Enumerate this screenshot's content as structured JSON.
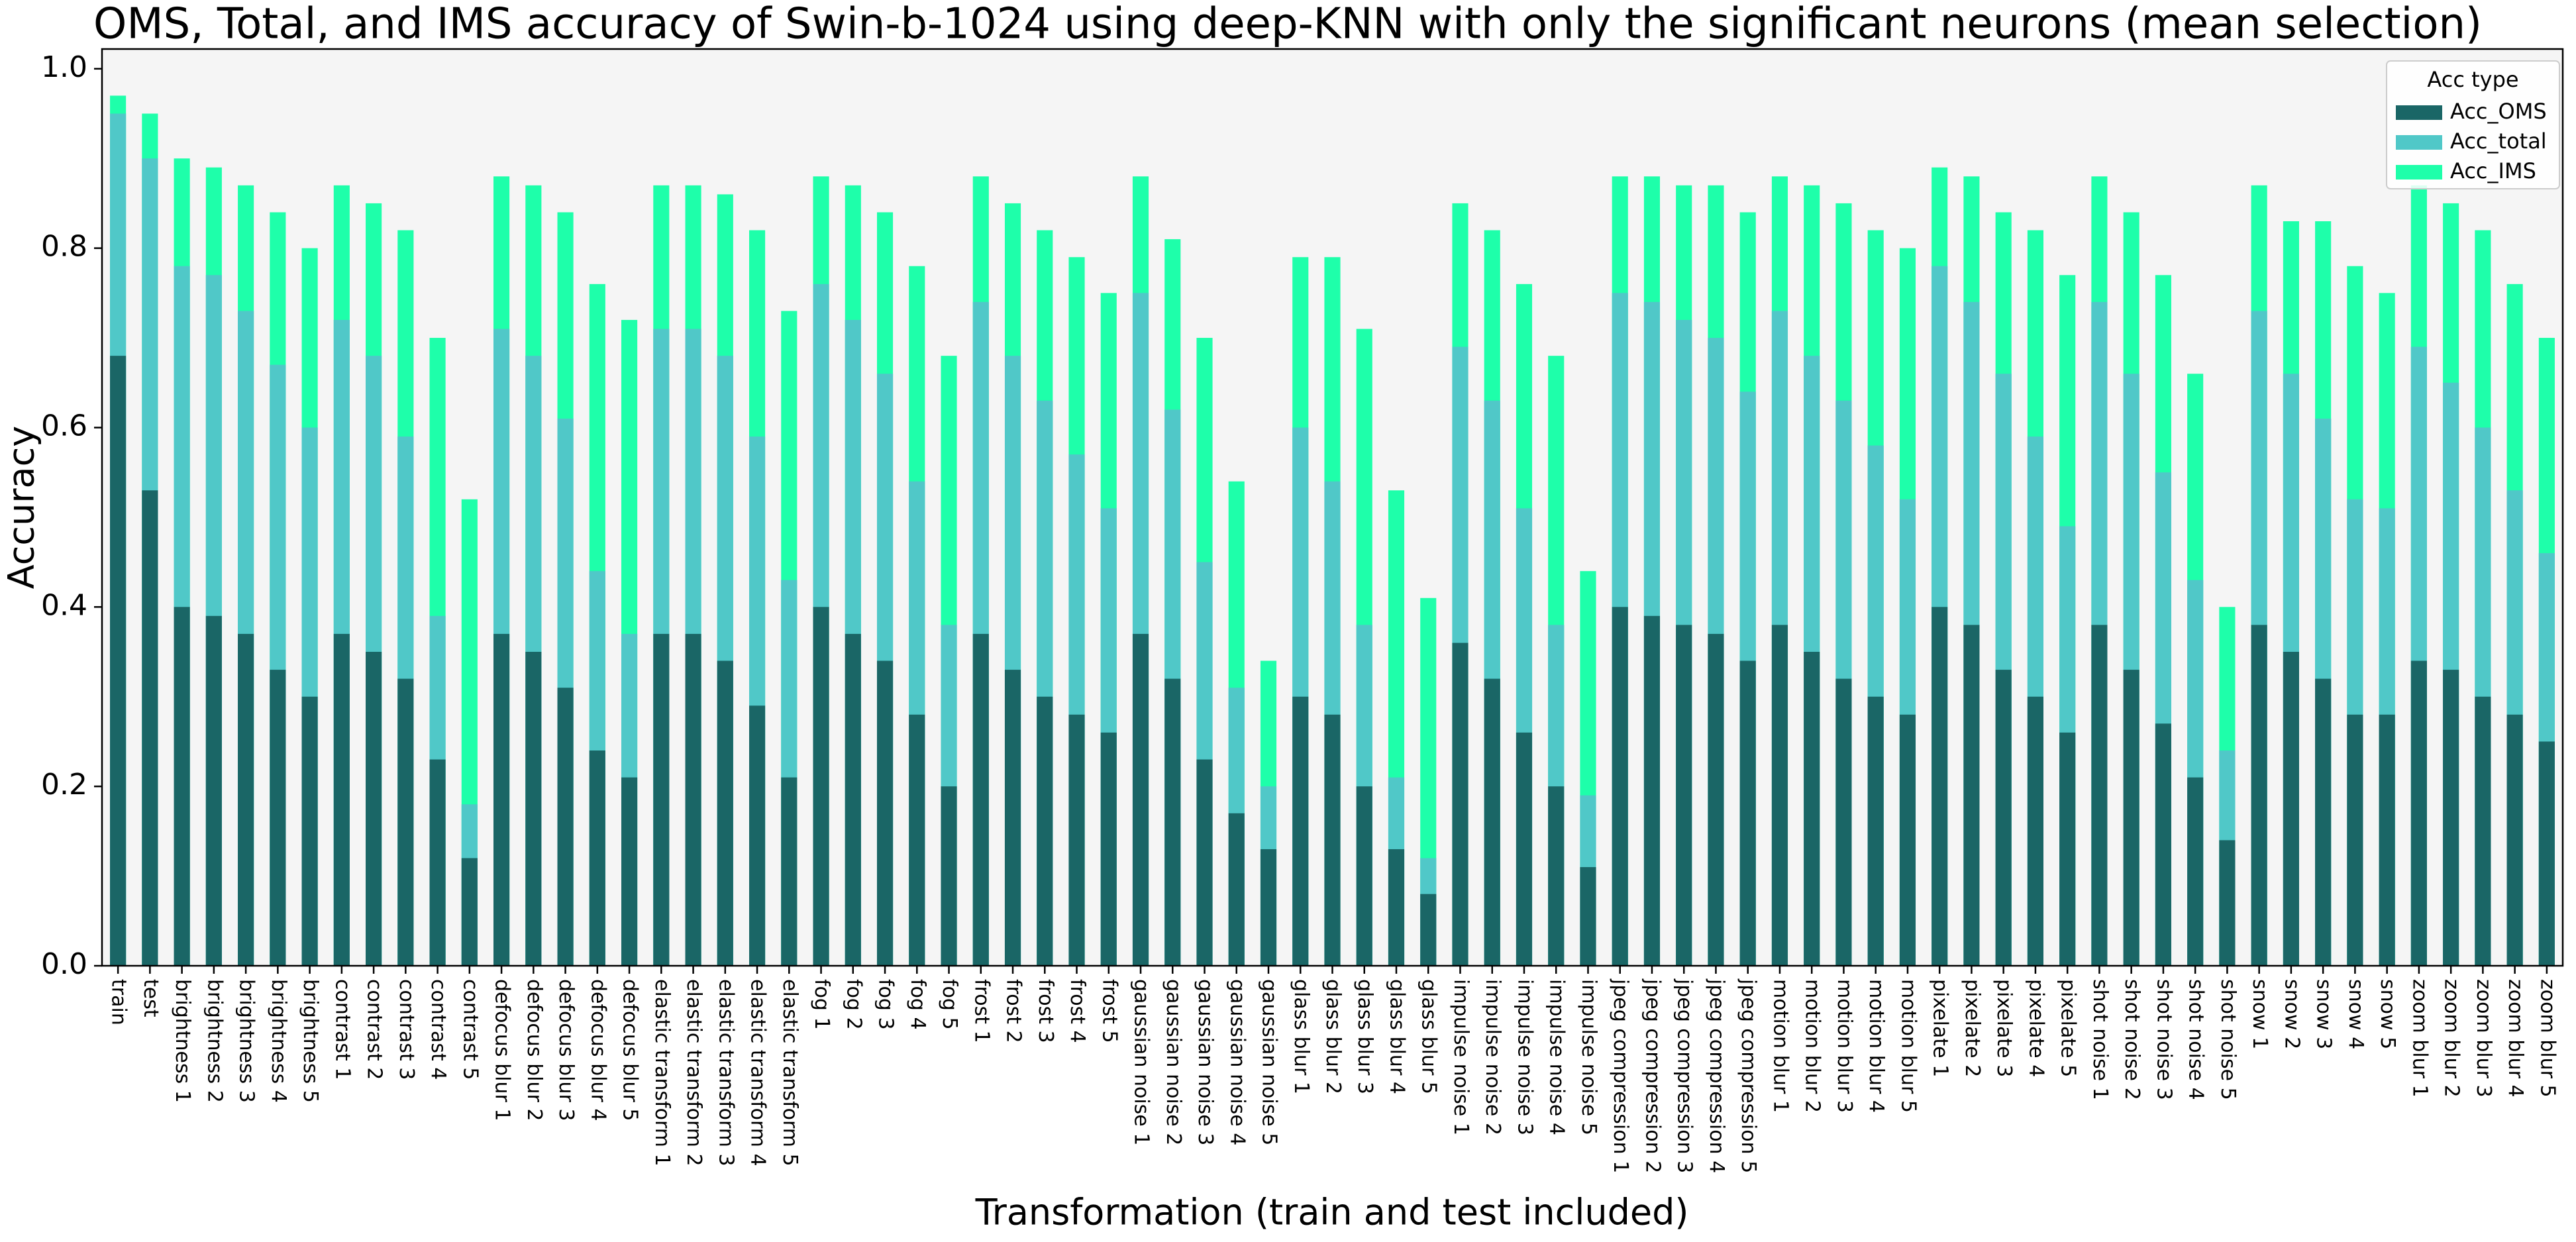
{
  "chart_data": {
    "type": "bar",
    "title": "OMS, Total,  and IMS accuracy of Swin-b-1024 using deep-KNN with only the significant neurons (mean selection)",
    "x_label": "Transformation (train and test included)",
    "y_label": "Accuracy",
    "legend_title": "Acc type",
    "legend_position": "upper right",
    "overlay": true,
    "grid": false,
    "categories": [
      "train",
      "test",
      "brightness 1",
      "brightness 2",
      "brightness 3",
      "brightness 4",
      "brightness 5",
      "contrast 1",
      "contrast 2",
      "contrast 3",
      "contrast 4",
      "contrast 5",
      "defocus blur 1",
      "defocus blur 2",
      "defocus blur 3",
      "defocus blur 4",
      "defocus blur 5",
      "elastic transform 1",
      "elastic transform 2",
      "elastic transform 3",
      "elastic transform 4",
      "elastic transform 5",
      "fog 1",
      "fog 2",
      "fog 3",
      "fog 4",
      "fog 5",
      "frost 1",
      "frost 2",
      "frost 3",
      "frost 4",
      "frost 5",
      "gaussian noise 1",
      "gaussian noise 2",
      "gaussian noise 3",
      "gaussian noise 4",
      "gaussian noise 5",
      "glass blur 1",
      "glass blur 2",
      "glass blur 3",
      "glass blur 4",
      "glass blur 5",
      "impulse noise 1",
      "impulse noise 2",
      "impulse noise 3",
      "impulse noise 4",
      "impulse noise 5",
      "jpeg compression 1",
      "jpeg compression 2",
      "jpeg compression 3",
      "jpeg compression 4",
      "jpeg compression 5",
      "motion blur 1",
      "motion blur 2",
      "motion blur 3",
      "motion blur 4",
      "motion blur 5",
      "pixelate 1",
      "pixelate 2",
      "pixelate 3",
      "pixelate 4",
      "pixelate 5",
      "shot noise 1",
      "shot noise 2",
      "shot noise 3",
      "shot noise 4",
      "shot noise 5",
      "snow 1",
      "snow 2",
      "snow 3",
      "snow 4",
      "snow 5",
      "zoom blur 1",
      "zoom blur 2",
      "zoom blur 3",
      "zoom blur 4",
      "zoom blur 5"
    ],
    "series": [
      {
        "name": "Acc_OMS",
        "color": "#1a6666",
        "values": [
          0.68,
          0.53,
          0.4,
          0.39,
          0.37,
          0.33,
          0.3,
          0.37,
          0.35,
          0.32,
          0.23,
          0.12,
          0.37,
          0.35,
          0.31,
          0.24,
          0.21,
          0.37,
          0.37,
          0.34,
          0.29,
          0.21,
          0.4,
          0.37,
          0.34,
          0.28,
          0.2,
          0.37,
          0.33,
          0.3,
          0.28,
          0.26,
          0.37,
          0.32,
          0.23,
          0.17,
          0.13,
          0.3,
          0.28,
          0.2,
          0.13,
          0.08,
          0.36,
          0.32,
          0.26,
          0.2,
          0.11,
          0.4,
          0.39,
          0.38,
          0.37,
          0.34,
          0.38,
          0.35,
          0.32,
          0.3,
          0.28,
          0.4,
          0.38,
          0.33,
          0.3,
          0.26,
          0.38,
          0.33,
          0.27,
          0.21,
          0.14,
          0.38,
          0.35,
          0.32,
          0.28,
          0.28,
          0.34,
          0.33,
          0.3,
          0.28,
          0.25
        ]
      },
      {
        "name": "Acc_total",
        "color": "#50c8c8",
        "values": [
          0.95,
          0.9,
          0.78,
          0.77,
          0.73,
          0.67,
          0.6,
          0.72,
          0.68,
          0.59,
          0.39,
          0.18,
          0.71,
          0.68,
          0.61,
          0.44,
          0.37,
          0.71,
          0.71,
          0.68,
          0.59,
          0.43,
          0.76,
          0.72,
          0.66,
          0.54,
          0.38,
          0.74,
          0.68,
          0.63,
          0.57,
          0.51,
          0.75,
          0.62,
          0.45,
          0.31,
          0.2,
          0.6,
          0.54,
          0.38,
          0.21,
          0.12,
          0.69,
          0.63,
          0.51,
          0.38,
          0.19,
          0.75,
          0.74,
          0.72,
          0.7,
          0.64,
          0.73,
          0.68,
          0.63,
          0.58,
          0.52,
          0.78,
          0.74,
          0.66,
          0.59,
          0.49,
          0.74,
          0.66,
          0.55,
          0.43,
          0.24,
          0.73,
          0.66,
          0.61,
          0.52,
          0.51,
          0.69,
          0.65,
          0.6,
          0.53,
          0.46
        ]
      },
      {
        "name": "Acc_IMS",
        "color": "#1effaa",
        "values": [
          0.97,
          0.95,
          0.9,
          0.89,
          0.87,
          0.84,
          0.8,
          0.87,
          0.85,
          0.82,
          0.7,
          0.52,
          0.88,
          0.87,
          0.84,
          0.76,
          0.72,
          0.87,
          0.87,
          0.86,
          0.82,
          0.73,
          0.88,
          0.87,
          0.84,
          0.78,
          0.68,
          0.88,
          0.85,
          0.82,
          0.79,
          0.75,
          0.88,
          0.81,
          0.7,
          0.54,
          0.34,
          0.79,
          0.79,
          0.71,
          0.53,
          0.41,
          0.85,
          0.82,
          0.76,
          0.68,
          0.44,
          0.88,
          0.88,
          0.87,
          0.87,
          0.84,
          0.88,
          0.87,
          0.85,
          0.82,
          0.8,
          0.89,
          0.88,
          0.84,
          0.82,
          0.77,
          0.88,
          0.84,
          0.77,
          0.66,
          0.4,
          0.87,
          0.83,
          0.83,
          0.78,
          0.75,
          0.87,
          0.85,
          0.82,
          0.76,
          0.7
        ]
      }
    ],
    "ylim": [
      0,
      1.022
    ],
    "yticks": [
      {
        "value": 0,
        "label": "0.0"
      },
      0.2,
      0.4,
      0.6,
      0.8,
      {
        "value": 1,
        "label": "1.0"
      }
    ]
  }
}
